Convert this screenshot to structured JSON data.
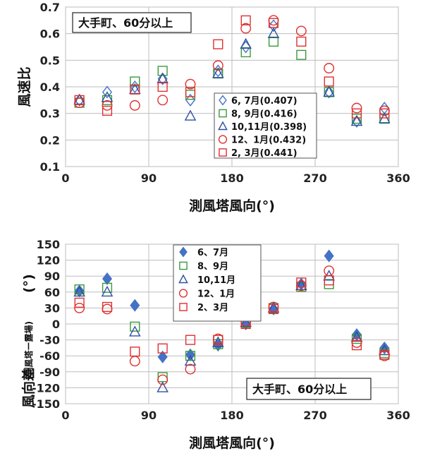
{
  "chart_data": [
    {
      "type": "scatter",
      "title": "",
      "annotation": "大手町、60分以上",
      "xlabel": "測風塔風向(°)",
      "ylabel": "風速比",
      "xlim": [
        0,
        360
      ],
      "ylim": [
        0.1,
        0.7
      ],
      "xticks": [
        0,
        90,
        180,
        270,
        360
      ],
      "yticks": [
        0.1,
        0.2,
        0.3,
        0.4,
        0.5,
        0.6,
        0.7
      ],
      "xtick_labels": [
        "0",
        "90",
        "180",
        "270",
        "360"
      ],
      "ytick_labels": [
        "0.1",
        "0.2",
        "0.3",
        "0.4",
        "0.5",
        "0.6",
        "0.7"
      ],
      "grid": true,
      "legend_position": "right-middle",
      "series": [
        {
          "name": "6, 7月(0.407)",
          "marker": "diamond-open",
          "color": "#4472c4",
          "x": [
            15,
            45,
            75,
            105,
            135,
            165,
            195,
            225,
            255,
            285,
            315,
            345
          ],
          "y": [
            0.35,
            0.38,
            0.4,
            0.43,
            0.35,
            0.46,
            0.55,
            0.63,
            null,
            0.38,
            0.27,
            0.32
          ]
        },
        {
          "name": "8, 9月(0.416)",
          "marker": "square-open",
          "color": "#3a9a3a",
          "x": [
            15,
            45,
            75,
            105,
            135,
            165,
            195,
            225,
            255,
            285,
            315,
            345
          ],
          "y": [
            0.34,
            0.35,
            0.42,
            0.46,
            0.37,
            0.45,
            0.53,
            0.57,
            0.52,
            0.38,
            0.28,
            0.28
          ]
        },
        {
          "name": "10,11月(0.398)",
          "marker": "triangle-open",
          "color": "#2f4fa0",
          "x": [
            15,
            45,
            75,
            105,
            135,
            165,
            195,
            225,
            255,
            285,
            315,
            345
          ],
          "y": [
            0.35,
            0.36,
            0.39,
            0.43,
            0.29,
            0.45,
            0.56,
            0.6,
            null,
            0.38,
            0.27,
            0.28
          ]
        },
        {
          "name": "12、1月(0.432)",
          "marker": "circle-open",
          "color": "#e03030",
          "x": [
            15,
            45,
            75,
            105,
            135,
            165,
            195,
            225,
            255,
            285,
            315,
            345
          ],
          "y": [
            0.34,
            0.33,
            0.33,
            0.35,
            0.41,
            0.48,
            0.62,
            0.65,
            0.61,
            0.47,
            0.32,
            0.31
          ]
        },
        {
          "name": "2, 3月(0.441)",
          "marker": "square-open",
          "color": "#e03030",
          "x": [
            15,
            45,
            75,
            105,
            135,
            165,
            195,
            225,
            255,
            285,
            315,
            345
          ],
          "y": [
            0.35,
            0.31,
            0.39,
            0.4,
            0.38,
            0.56,
            0.65,
            0.64,
            0.57,
            0.42,
            0.3,
            0.3
          ]
        }
      ]
    },
    {
      "type": "scatter",
      "title": "",
      "annotation": "大手町、60分以上",
      "xlabel": "測風塔風向(°)",
      "ylabel": "風向差",
      "ylabel_sub": "(測風塔ー露場)",
      "ylabel_unit": "(°)",
      "xlim": [
        0,
        360
      ],
      "ylim": [
        -150,
        150
      ],
      "xticks": [
        0,
        90,
        180,
        270,
        360
      ],
      "yticks": [
        -150,
        -120,
        -90,
        -60,
        -30,
        0,
        30,
        60,
        90,
        120,
        150
      ],
      "xtick_labels": [
        "0",
        "90",
        "180",
        "270",
        "360"
      ],
      "ytick_labels": [
        "-150",
        "-120",
        "-90",
        "-60",
        "-30",
        "0",
        "30",
        "60",
        "90",
        "120",
        "150"
      ],
      "grid": true,
      "legend_position": "top-center",
      "series": [
        {
          "name": "6、7月",
          "marker": "diamond-filled",
          "color": "#4472c4",
          "x": [
            15,
            45,
            75,
            105,
            135,
            165,
            195,
            225,
            255,
            285,
            315,
            345
          ],
          "y": [
            62,
            85,
            35,
            -62,
            -58,
            -40,
            0,
            28,
            75,
            128,
            -20,
            -45
          ]
        },
        {
          "name": "8、9月",
          "marker": "square-open",
          "color": "#3a9a3a",
          "x": [
            15,
            45,
            75,
            105,
            135,
            165,
            195,
            225,
            255,
            285,
            315,
            345
          ],
          "y": [
            65,
            68,
            -5,
            -100,
            -60,
            -38,
            2,
            30,
            70,
            75,
            -28,
            -55
          ]
        },
        {
          "name": "10,11月",
          "marker": "triangle-open",
          "color": "#2f4fa0",
          "x": [
            15,
            45,
            75,
            105,
            135,
            165,
            195,
            225,
            255,
            285,
            315,
            345
          ],
          "y": [
            60,
            60,
            -15,
            -120,
            -70,
            -35,
            3,
            30,
            72,
            90,
            -25,
            -50
          ]
        },
        {
          "name": "12、1月",
          "marker": "circle-open",
          "color": "#e03030",
          "x": [
            15,
            45,
            75,
            105,
            135,
            165,
            195,
            225,
            255,
            285,
            315,
            345
          ],
          "y": [
            30,
            28,
            -70,
            -105,
            -85,
            -28,
            5,
            32,
            72,
            100,
            -35,
            -60
          ]
        },
        {
          "name": "2、3月",
          "marker": "square-open",
          "color": "#e03030",
          "x": [
            15,
            45,
            75,
            105,
            135,
            165,
            195,
            225,
            255,
            285,
            315,
            345
          ],
          "y": [
            40,
            32,
            -52,
            -46,
            -30,
            -30,
            0,
            28,
            78,
            82,
            -40,
            -58
          ]
        }
      ]
    }
  ]
}
